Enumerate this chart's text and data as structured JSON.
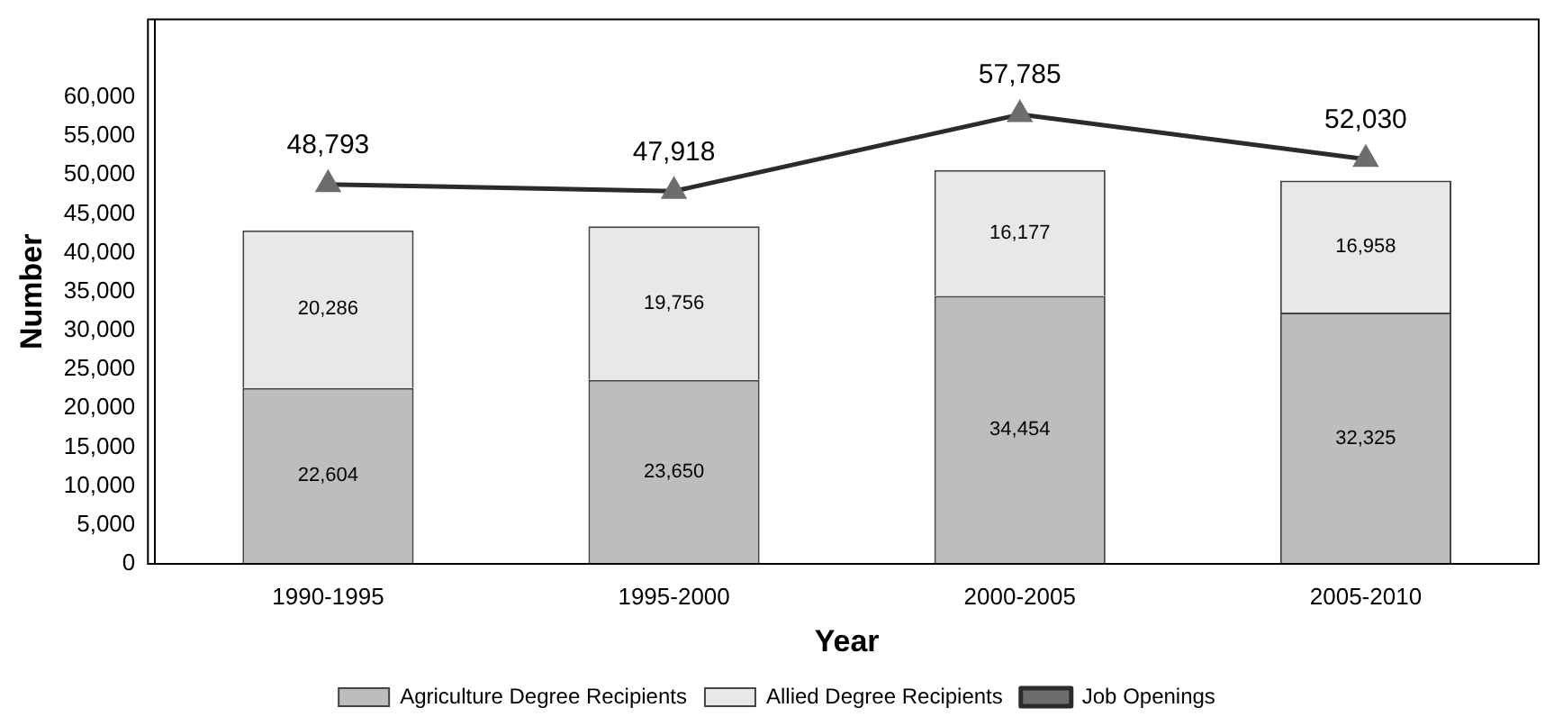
{
  "chart_data": {
    "type": "bar",
    "stacked": true,
    "xlabel": "Year",
    "ylabel": "Number",
    "categories": [
      "1990-1995",
      "1995-2000",
      "2000-2005",
      "2005-2010"
    ],
    "series": [
      {
        "name": "Agriculture Degree Recipients",
        "color": "#bdbdbf",
        "values": [
          22604,
          23650,
          34454,
          32325
        ],
        "value_labels": [
          "22,604",
          "23,650",
          "34,454",
          "32,325"
        ]
      },
      {
        "name": "Allied Degree Recipients",
        "color": "#e8e8e8",
        "values": [
          20286,
          19756,
          16177,
          16958
        ],
        "value_labels": [
          "20,286",
          "19,756",
          "16,177",
          "16,958"
        ]
      },
      {
        "name": "Job Openings",
        "type": "line",
        "color": "#2b2b2b",
        "values": [
          48793,
          47918,
          57785,
          52030
        ],
        "value_labels": [
          "48,793",
          "47,918",
          "57,785",
          "52,030"
        ]
      }
    ],
    "ylim": [
      0,
      70000
    ],
    "yticks": [
      0,
      {
        "value": 5000,
        "label": "5,000"
      },
      {
        "value": 10000,
        "label": "10,000"
      },
      {
        "value": 15000,
        "label": "15,000"
      },
      {
        "value": 20000,
        "label": "20,000"
      },
      {
        "value": 25000,
        "label": "25,000"
      },
      {
        "value": 30000,
        "label": "30,000"
      },
      {
        "value": 35000,
        "label": "35,000"
      },
      {
        "value": 40000,
        "label": "40,000"
      },
      {
        "value": 45000,
        "label": "45,000"
      },
      {
        "value": 50000,
        "label": "50,000"
      },
      {
        "value": 55000,
        "label": "55,000"
      },
      {
        "value": 60000,
        "label": "60,000"
      }
    ],
    "grid": false,
    "legend": "bottom",
    "marker": "triangle"
  }
}
